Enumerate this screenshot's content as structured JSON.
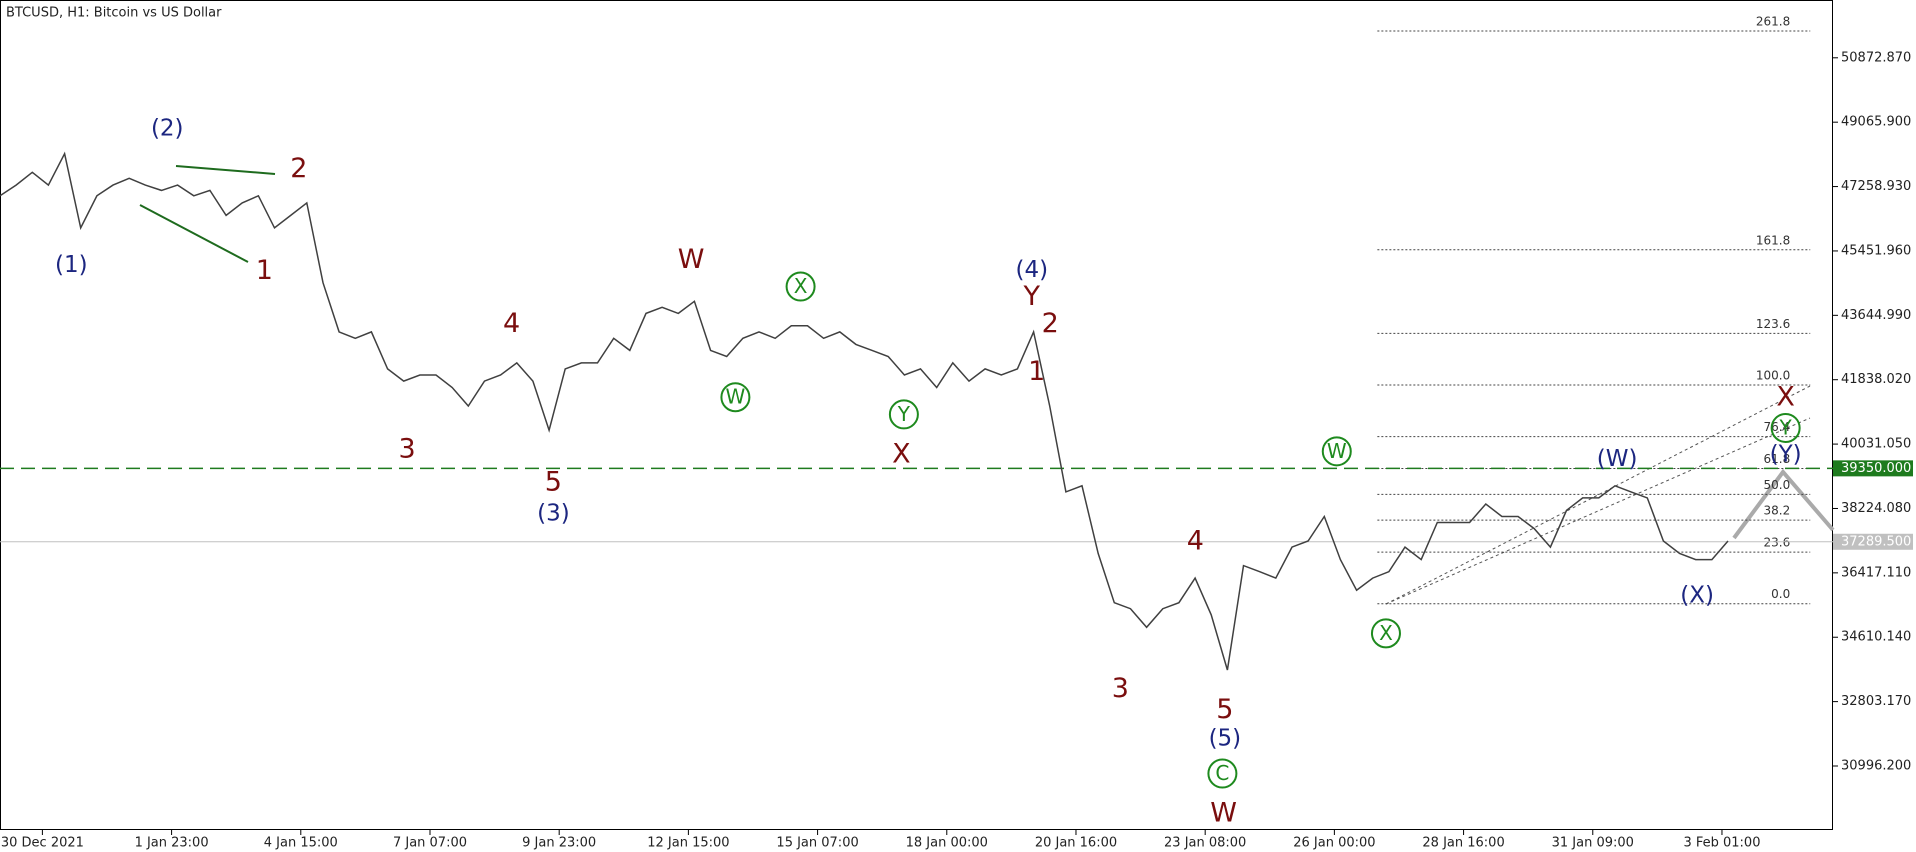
{
  "chart_data": {
    "type": "line",
    "title": "BTCUSD, H1:  Bitcoin vs US Dollar",
    "color": "#404040",
    "x": [
      0,
      8,
      16,
      24,
      32,
      40,
      48,
      56,
      64,
      72,
      80,
      88,
      96,
      104,
      112,
      120,
      128,
      136,
      144,
      152,
      160,
      168,
      176,
      184,
      192,
      200,
      208,
      216,
      224,
      232,
      240,
      248,
      256,
      264,
      272,
      280,
      288,
      296,
      304,
      312,
      320,
      328,
      336,
      344,
      352,
      360,
      368,
      376,
      384,
      392,
      400,
      408,
      416,
      424,
      432,
      440,
      448,
      456,
      464,
      472,
      480,
      488,
      496,
      504,
      512,
      520,
      528,
      536,
      544,
      552,
      560,
      568,
      576,
      584,
      592,
      600,
      608,
      616,
      624,
      632,
      640,
      648,
      656,
      664,
      672,
      680,
      688,
      696,
      704,
      712,
      720,
      728,
      736,
      744,
      752,
      760,
      768,
      776,
      784,
      792,
      800,
      808,
      816,
      824,
      832,
      840,
      848,
      856
    ],
    "values": [
      47000,
      47300,
      47660,
      47300,
      48180,
      46100,
      47000,
      47300,
      47490,
      47300,
      47150,
      47300,
      47000,
      47150,
      46450,
      46800,
      47000,
      46100,
      46450,
      46800,
      44560,
      43180,
      43000,
      43180,
      42140,
      41800,
      41970,
      41970,
      41620,
      41100,
      41800,
      41970,
      42310,
      41800,
      40420,
      42140,
      42310,
      42310,
      43000,
      42660,
      43700,
      43870,
      43700,
      44040,
      42660,
      42490,
      43000,
      43180,
      43000,
      43350,
      43350,
      43000,
      43180,
      42830,
      42660,
      42490,
      41970,
      42140,
      41620,
      42310,
      41800,
      42140,
      41970,
      42140,
      43180,
      41100,
      38690,
      38860,
      36960,
      35580,
      35410,
      34890,
      35410,
      35580,
      36270,
      35240,
      33690,
      36620,
      36450,
      36270,
      37140,
      37310,
      38000,
      36790,
      35930,
      36270,
      36450,
      37140,
      36790,
      37830,
      37830,
      37830,
      38350,
      38000,
      38000,
      37660,
      37140,
      38170,
      38520,
      38520,
      38860,
      38690,
      38520,
      37310,
      36960,
      36790,
      36790,
      37310
    ],
    "xlim": [
      0,
      908
    ],
    "xticks": [
      {
        "value": 21,
        "label": "30 Dec 2021"
      },
      {
        "value": 85,
        "label": "1 Jan 23:00"
      },
      {
        "value": 149,
        "label": "4 Jan 15:00"
      },
      {
        "value": 213,
        "label": "7 Jan 07:00"
      },
      {
        "value": 277,
        "label": "9 Jan 23:00"
      },
      {
        "value": 341,
        "label": "12 Jan 15:00"
      },
      {
        "value": 405,
        "label": "15 Jan 07:00"
      },
      {
        "value": 469,
        "label": "18 Jan 00:00"
      },
      {
        "value": 533,
        "label": "20 Jan 16:00"
      },
      {
        "value": 597,
        "label": "23 Jan 08:00"
      },
      {
        "value": 661,
        "label": "26 Jan 00:00"
      },
      {
        "value": 725,
        "label": "28 Jan 16:00"
      },
      {
        "value": 789,
        "label": "31 Jan 09:00"
      },
      {
        "value": 853,
        "label": "3 Feb 01:00"
      }
    ],
    "ylim": [
      29200,
      52495
    ],
    "yticks": [
      {
        "value": 30996.2,
        "label": "30996.200"
      },
      {
        "value": 32803.17,
        "label": "32803.170"
      },
      {
        "value": 34610.14,
        "label": "34610.140"
      },
      {
        "value": 36417.11,
        "label": "36417.110"
      },
      {
        "value": 38224.08,
        "label": "38224.080"
      },
      {
        "value": 40031.05,
        "label": "40031.050"
      },
      {
        "value": 41838.02,
        "label": "41838.020"
      },
      {
        "value": 43644.99,
        "label": "43644.990"
      },
      {
        "value": 45451.96,
        "label": "45451.960"
      },
      {
        "value": 47258.93,
        "label": "47258.930"
      },
      {
        "value": 49065.9,
        "label": "49065.900"
      },
      {
        "value": 50872.87,
        "label": "50872.870"
      }
    ],
    "price_lines": [
      {
        "value": 39350,
        "label": "39350.000",
        "color": "#1e7b1e",
        "dashed": true
      },
      {
        "value": 37289.5,
        "label": "37289.500",
        "color": "#c0c0c0",
        "dashed": false
      }
    ],
    "fibonacci": {
      "low": 35550,
      "high": 41690,
      "levels": [
        {
          "value": 0,
          "label": "0.0"
        },
        23.6,
        38.2,
        {
          "value": 50,
          "label": "50.0"
        },
        61.8,
        76.4,
        {
          "value": 100,
          "label": "100.0"
        },
        123.6,
        161.8,
        261.8
      ]
    },
    "annotations": [
      {
        "text": "(1)",
        "color": "#1c2680"
      },
      {
        "text": "(2)",
        "color": "#1c2680"
      },
      {
        "text": "2",
        "color": "#7a0e0e"
      },
      {
        "text": "1",
        "color": "#7a0e0e"
      },
      {
        "text": "3",
        "color": "#7a0e0e"
      },
      {
        "text": "4",
        "color": "#7a0e0e"
      },
      {
        "text": "5",
        "color": "#7a0e0e"
      },
      {
        "text": "(3)",
        "color": "#1c2680"
      },
      {
        "text": "W",
        "color": "#7a0e0e"
      },
      {
        "text": "X",
        "color": "#1e8a1e",
        "circled": true
      },
      {
        "text": "W",
        "color": "#1e8a1e",
        "circled": true
      },
      {
        "text": "Y",
        "color": "#1e8a1e",
        "circled": true
      },
      {
        "text": "X",
        "color": "#7a0e0e"
      },
      {
        "text": "(4)",
        "color": "#1c2680"
      },
      {
        "text": "Y",
        "color": "#7a0e0e"
      },
      {
        "text": "2",
        "color": "#7a0e0e"
      },
      {
        "text": "1",
        "color": "#7a0e0e"
      },
      {
        "text": "3",
        "color": "#7a0e0e"
      },
      {
        "text": "4",
        "color": "#7a0e0e"
      },
      {
        "text": "5",
        "color": "#7a0e0e"
      },
      {
        "text": "(5)",
        "color": "#1c2680"
      },
      {
        "text": "C",
        "color": "#1e8a1e",
        "circled": true
      },
      {
        "text": "W",
        "color": "#7a0e0e"
      },
      {
        "text": "W",
        "color": "#1e8a1e",
        "circled": true
      },
      {
        "text": "X",
        "color": "#1e8a1e",
        "circled": true
      },
      {
        "text": "(W)",
        "color": "#1c2680"
      },
      {
        "text": "(X)",
        "color": "#1c2680"
      },
      {
        "text": "X",
        "color": "#7a0e0e"
      },
      {
        "text": "Y",
        "color": "#1e8a1e",
        "circled": true
      },
      {
        "text": "(Y)",
        "color": "#1c2680"
      }
    ]
  }
}
